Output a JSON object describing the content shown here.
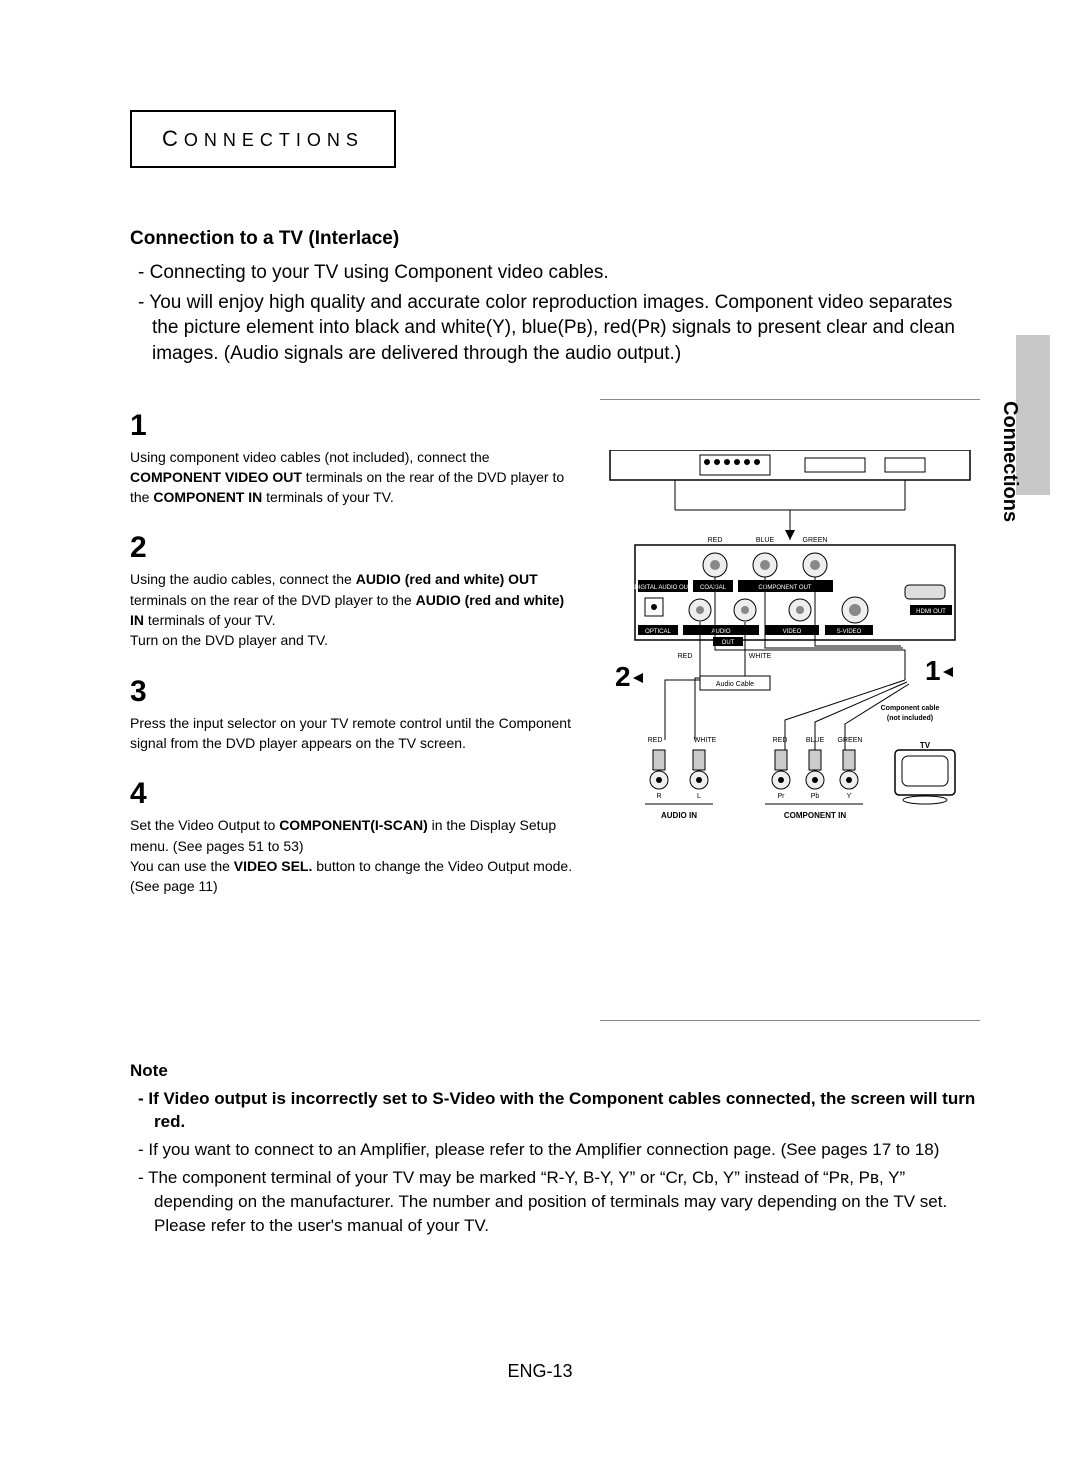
{
  "section_label": "ONNECTIONS",
  "section_first_letter": "C",
  "sidetab": "Connections",
  "subheading": "Connection to a TV (Interlace)",
  "intro": [
    "Connecting to your TV using Component video cables.",
    "You will enjoy high quality and accurate color reproduction images. Component video separates the picture element into black and white(Y), blue(Pʙ), red(Pʀ) signals to present clear and clean images. (Audio signals are delivered through the audio output.)"
  ],
  "steps": {
    "s1": {
      "num": "1",
      "text": "Using component video cables (not included), connect the <b>COMPONENT VIDEO OUT</b> terminals on the rear of the DVD player to the <b>COMPONENT IN</b> terminals of your TV."
    },
    "s2": {
      "num": "2",
      "text": "Using the audio cables, connect the <b>AUDIO (red and white) OUT</b> terminals on the rear of the DVD player to the <b>AUDIO (red and white) IN</b> terminals of your TV.<br>Turn on the DVD player and TV."
    },
    "s3": {
      "num": "3",
      "text": "Press the input selector on your TV remote control until the Component signal from the DVD player appears on the TV screen."
    },
    "s4": {
      "num": "4",
      "text": "Set the Video Output to <b>COMPONENT(I-SCAN)</b> in the Display Setup menu. (See pages 51 to 53)<br>You can use the <b>VIDEO SEL.</b> button to change the Video Output mode. (See page 11)"
    }
  },
  "diagram": {
    "player_labels": [
      "DIGITAL AUDIO OUT",
      "COAXIAL",
      "COMPONENT OUT",
      "HDMI OUT",
      "OPTICAL",
      "AUDIO",
      "VIDEO",
      "S-VIDEO",
      "OUT"
    ],
    "color_labels": {
      "red": "RED",
      "blue": "BLUE",
      "green": "GREEN",
      "white": "WHITE"
    },
    "callouts": {
      "one": "1",
      "two": "2"
    },
    "audio_cable": "Audio Cable",
    "component_cable": "Component cable\n(not included)",
    "tv": "TV",
    "tv_in_labels": {
      "audio_in": "AUDIO IN",
      "component_in": "COMPONENT IN"
    },
    "pins": [
      "R",
      "L",
      "Pr",
      "Pb",
      "Y"
    ]
  },
  "notes": {
    "title": "Note",
    "items": [
      {
        "bold": true,
        "text": "If Video output is incorrectly set to S-Video with the Component cables connected, the screen will turn red."
      },
      {
        "bold": false,
        "text": "If you want to connect to an Amplifier, please refer to the Amplifier connection page. (See pages 17 to 18)"
      },
      {
        "bold": false,
        "text": "The component terminal of your TV may be marked “R-Y, B-Y, Y” or “Cr, Cb, Y” instead of “Pʀ, Pʙ, Y” depending on the manufacturer. The number and position of terminals may vary depending on the TV set. Please refer to the user's manual of your TV."
      }
    ]
  },
  "footer": "ENG-13",
  "colors": {
    "red": "#c00",
    "blue": "#06c",
    "green": "#090",
    "grey": "#888",
    "black": "#000"
  }
}
